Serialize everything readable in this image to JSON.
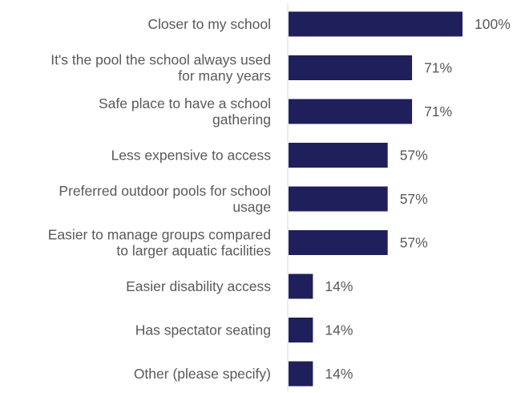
{
  "chart_data": {
    "type": "bar",
    "orientation": "horizontal",
    "categories": [
      "Closer to my school",
      "It's the pool the school always used for many years",
      "Safe place to have a school gathering",
      "Less expensive to access",
      "Preferred outdoor pools for school usage",
      "Easier to manage groups compared to larger aquatic facilities",
      "Easier disability access",
      "Has spectator seating",
      "Other (please specify)"
    ],
    "category_lines": [
      [
        "Closer to my school"
      ],
      [
        "It's the pool the school always used",
        "for many years"
      ],
      [
        "Safe place to have a school",
        "gathering"
      ],
      [
        "Less expensive to access"
      ],
      [
        "Preferred outdoor pools for school",
        "usage"
      ],
      [
        "Easier to manage groups compared",
        "to larger aquatic facilities"
      ],
      [
        "Easier disability access"
      ],
      [
        "Has spectator seating"
      ],
      [
        "Other (please specify)"
      ]
    ],
    "values": [
      100,
      71,
      71,
      57,
      57,
      57,
      14,
      14,
      14
    ],
    "value_labels": [
      "100%",
      "71%",
      "71%",
      "57%",
      "57%",
      "57%",
      "14%",
      "14%",
      "14%"
    ],
    "unit": "%",
    "xlim": [
      0,
      100
    ],
    "title": "",
    "xlabel": "",
    "ylabel": "",
    "grid": false,
    "legend": "none",
    "bar_color": "#1f1f5c",
    "text_color": "#595959",
    "axis_color": "#d9d9d9"
  }
}
